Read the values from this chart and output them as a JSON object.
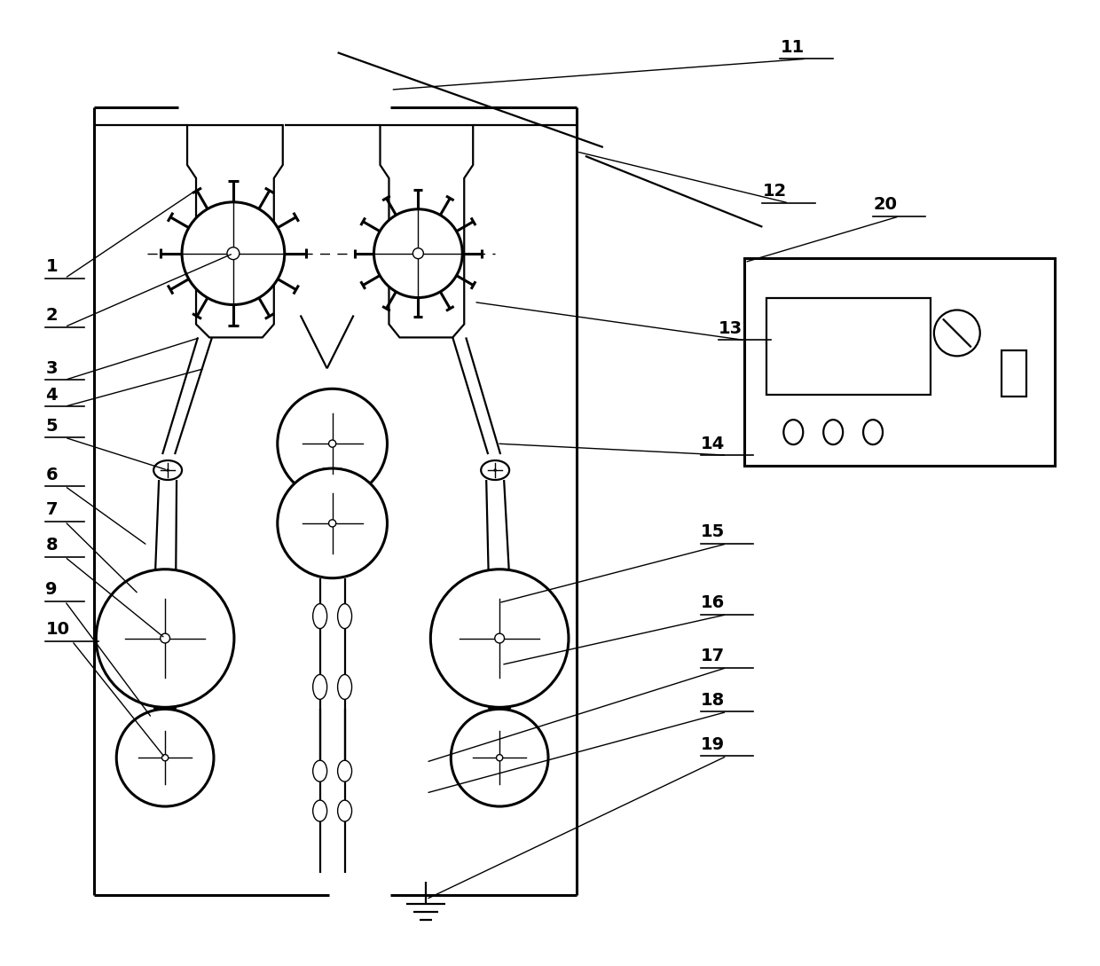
{
  "bg_color": "#ffffff",
  "fig_width": 12.4,
  "fig_height": 10.89,
  "lw_main": 1.6,
  "lw_thick": 2.2,
  "lw_thin": 1.0
}
